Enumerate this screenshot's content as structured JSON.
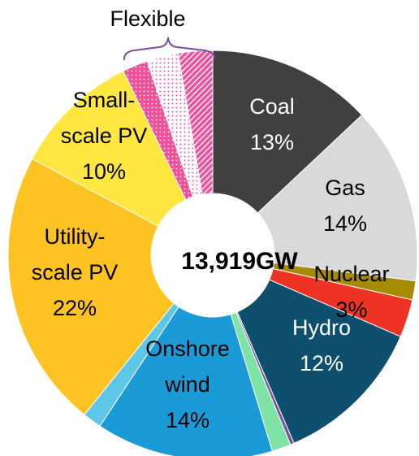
{
  "chart_data": {
    "type": "donut",
    "title": "Flexible",
    "center_label": "13,919GW",
    "categories": [
      "Coal",
      "Gas",
      null,
      "Nuclear",
      "Hydro",
      null,
      null,
      "Onshore\nwind",
      null,
      "Utility-\nscale PV",
      "Small-\nscale PV",
      null,
      null,
      null
    ],
    "values": [
      13,
      14,
      1.5,
      3,
      12,
      0.3,
      1.5,
      14,
      1.5,
      22,
      10,
      2,
      2.5,
      2.7
    ],
    "value_labels": [
      "13%",
      "14%",
      null,
      "3%",
      "12%",
      null,
      null,
      "14%",
      null,
      "22%",
      "10%",
      null,
      null,
      null
    ],
    "colors": [
      "#404040",
      "#d9d9d9",
      "#a68a00",
      "#ee3224",
      "#0d4f6c",
      "#7b4fa0",
      "#7fe3a5",
      "#1a9ad6",
      "#5ec6e6",
      "#fdc323",
      "#ffe640",
      "#f0509a",
      "#f0509a",
      "#f0509a"
    ],
    "hatch": [
      null,
      null,
      null,
      null,
      null,
      null,
      null,
      null,
      null,
      null,
      null,
      "dots",
      "dots-inverse",
      "stripes"
    ]
  }
}
